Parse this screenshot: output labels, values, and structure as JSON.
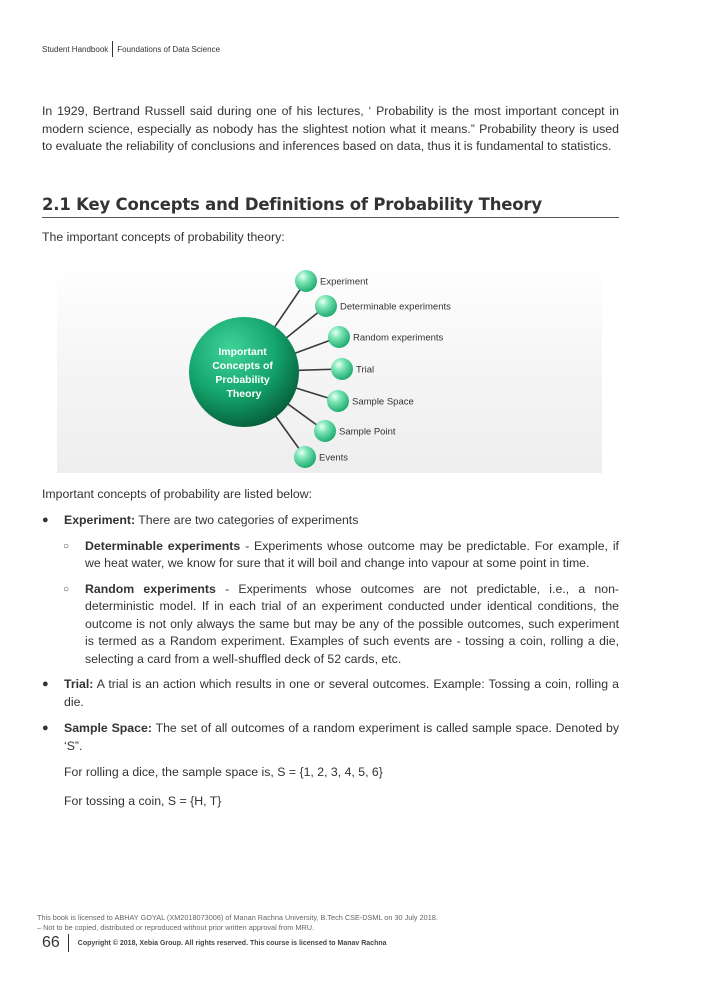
{
  "header": {
    "left": "Student Handbook",
    "right": "Foundations of Data Science"
  },
  "intro": "In 1929, Bertrand Russell said during one of his lectures, ‘ Probability is the most important concept in modern science, especially as nobody has the slightest notion what it means.” Probability theory is used to evaluate the reliability of conclusions and inferences based on data, thus it is fundamental to statistics.",
  "section_title": "2.1 Key Concepts and Definitions of Probability Theory",
  "concepts_intro": "The important concepts of probability theory:",
  "diagram": {
    "center": [
      "Important",
      "Concepts of",
      "Probability",
      "Theory"
    ],
    "nodes": [
      "Experiment",
      "Determinable experiments",
      "Random experiments",
      "Trial",
      "Sample Space",
      "Sample Point",
      "Events"
    ],
    "accent": "#1a9e6a"
  },
  "list_intro": "Important concepts of probability are listed below:",
  "items": {
    "experiment": {
      "term": "Experiment:",
      "text": " There are two categories of experiments"
    },
    "determinable": {
      "term": "Determinable experiments",
      "text": " - Experiments whose outcome may be predictable. For example, if we heat water, we know for sure that it will boil and change into vapour at some point in time."
    },
    "random": {
      "term": "Random experiments",
      "text": " - Experiments whose outcomes are not predictable, i.e., a non-deterministic model. If in each trial of an experiment conducted under identical conditions, the outcome is not only always the same but may be any of the possible outcomes, such experiment is termed as a Random experiment. Examples of such events are - tossing a coin, rolling a die, selecting a card from a well-shuffled deck of 52 cards, etc."
    },
    "trial": {
      "term": "Trial:",
      "text": " A trial is an action which results in one or several outcomes. Example: Tossing a coin, rolling a die."
    },
    "sample_space": {
      "term": "Sample Space:",
      "text": " The set of all outcomes of a random experiment is called sample space. Denoted by ‘S”."
    },
    "dice": "For rolling a dice, the sample space is, S = {1, 2, 3, 4, 5, 6}",
    "coin": "For tossing a coin, S = {H, T}"
  },
  "footer": {
    "license_line1": "This book is licensed to ABHAY GOYAL (XM2018073006) of Manan Rachna University, B.Tech CSE-DSML on 30 July 2018.",
    "license_line2": "– Not to be copied, distributed or reproduced without prior written approval from MRU.",
    "page": "66",
    "copyright": "Copyright © 2018, Xebia Group. All rights reserved. This course is licensed to Manav Rachna"
  }
}
